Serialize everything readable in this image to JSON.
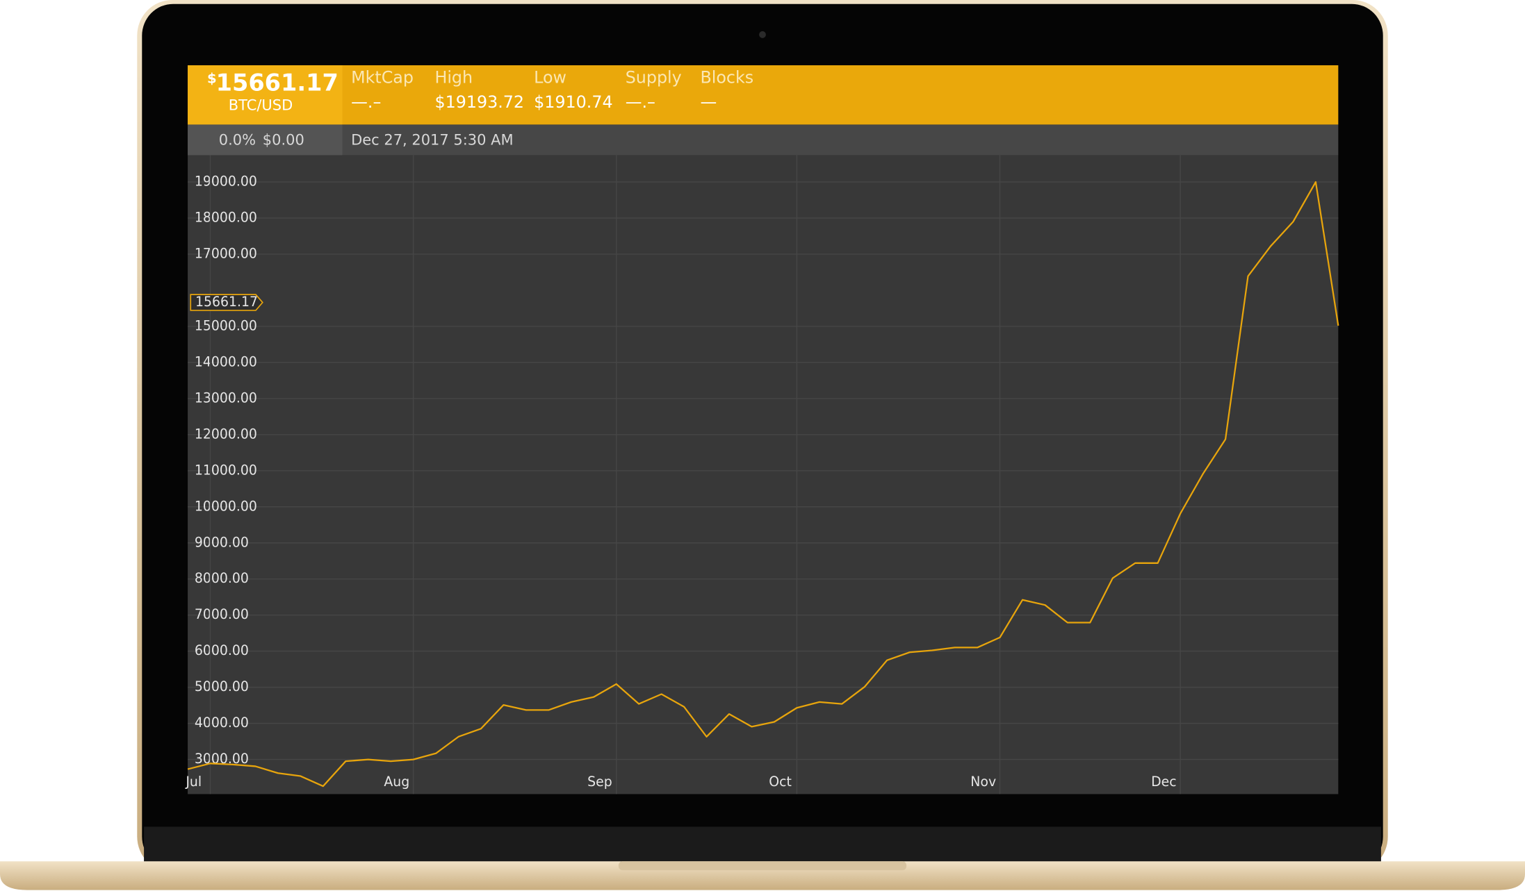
{
  "header": {
    "currency_symbol": "$",
    "price": "15661.17",
    "pair": "BTC/USD",
    "stats": [
      {
        "label": "MktCap",
        "value": "—.–"
      },
      {
        "label": "High",
        "value": "$19193.72"
      },
      {
        "label": "Low",
        "value": "$1910.74"
      },
      {
        "label": "Supply",
        "value": "—.–"
      },
      {
        "label": "Blocks",
        "value": "—"
      }
    ],
    "change_percent": "0.0%",
    "change_amount": "$0.00",
    "timestamp": "Dec 27, 2017 5:30 AM"
  },
  "chart_data": {
    "type": "line",
    "color": "#e8a50c",
    "categories": [
      null,
      "Jul",
      null,
      null,
      null,
      null,
      null,
      null,
      null,
      null,
      "Aug",
      null,
      null,
      null,
      null,
      null,
      null,
      null,
      null,
      "Sep",
      null,
      null,
      null,
      null,
      null,
      null,
      null,
      "Oct",
      null,
      null,
      null,
      null,
      null,
      null,
      null,
      null,
      "Nov",
      null,
      null,
      null,
      null,
      null,
      null,
      null,
      "Dec",
      null,
      null,
      null,
      null,
      null,
      null,
      null
    ],
    "values": [
      2730,
      2890,
      2860,
      2810,
      2620,
      2540,
      2260,
      2950,
      3000,
      2950,
      3000,
      3170,
      3630,
      3850,
      4510,
      4370,
      4370,
      4590,
      4730,
      5090,
      4540,
      4810,
      4460,
      3630,
      4260,
      3910,
      4040,
      4430,
      4590,
      4540,
      5010,
      5750,
      5970,
      6020,
      6100,
      6100,
      6380,
      7420,
      7280,
      6790,
      6790,
      8020,
      8440,
      8440,
      9810,
      10910,
      11870,
      16390,
      17220,
      17900,
      19000,
      15020
    ],
    "ylim": [
      2040,
      19740
    ],
    "yticks": [
      {
        "value": 3000,
        "label": "3000.00"
      },
      {
        "value": 4000,
        "label": "4000.00"
      },
      {
        "value": 5000,
        "label": "5000.00"
      },
      {
        "value": 6000,
        "label": "6000.00"
      },
      {
        "value": 7000,
        "label": "7000.00"
      },
      {
        "value": 8000,
        "label": "8000.00"
      },
      {
        "value": 9000,
        "label": "9000.00"
      },
      {
        "value": 10000,
        "label": "10000.00"
      },
      {
        "value": 11000,
        "label": "11000.00"
      },
      {
        "value": 12000,
        "label": "12000.00"
      },
      {
        "value": 13000,
        "label": "13000.00"
      },
      {
        "value": 14000,
        "label": "14000.00"
      },
      {
        "value": 15000,
        "label": "15000.00"
      },
      {
        "value": 17000,
        "label": "17000.00"
      },
      {
        "value": 18000,
        "label": "18000.00"
      },
      {
        "value": 19000,
        "label": "19000.00"
      }
    ],
    "current_price": 15661.17,
    "grid": true
  }
}
